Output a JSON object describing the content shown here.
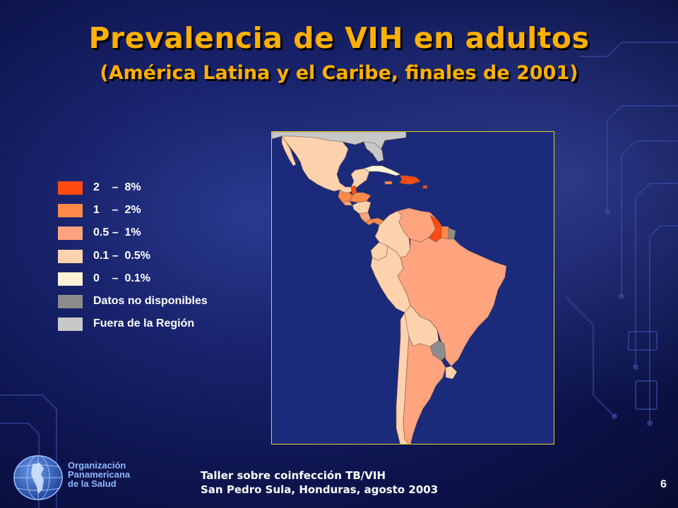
{
  "title": "Prevalencia de VIH en adultos",
  "subtitle": "(América Latina y el Caribe, finales de 2001)",
  "colors": {
    "title": "#ffb000",
    "frame": "#e8d020",
    "ocean": "#1b2a7a",
    "outside_region": "#c8c8c8",
    "no_data": "#8c8c8c"
  },
  "legend": [
    {
      "label": "2    –  8%",
      "color": "#ff4a10"
    },
    {
      "label": "1    –  2%",
      "color": "#ff8a4a"
    },
    {
      "label": "0.5 –  1%",
      "color": "#ffa47e"
    },
    {
      "label": "0.1 –  0.5%",
      "color": "#ffd2ae"
    },
    {
      "label": "0    –  0.1%",
      "color": "#fff3d8"
    },
    {
      "label": "Datos no disponibles",
      "color": "#8c8c8c"
    },
    {
      "label": "Fuera de la Región",
      "color": "#c8c8c8"
    }
  ],
  "map": {
    "region": "América Latina y el Caribe",
    "areas": [
      {
        "name": "United States",
        "category": "Fuera de la Región"
      },
      {
        "name": "Mexico",
        "category": "0.1 – 0.5%"
      },
      {
        "name": "Guatemala",
        "category": "1 – 2%"
      },
      {
        "name": "Belize",
        "category": "2 – 8%"
      },
      {
        "name": "Honduras",
        "category": "1 – 2%"
      },
      {
        "name": "El Salvador",
        "category": "0.5 – 1%"
      },
      {
        "name": "Nicaragua",
        "category": "0.1 – 0.5%"
      },
      {
        "name": "Costa Rica",
        "category": "0.5 – 1%"
      },
      {
        "name": "Panama",
        "category": "1 – 2%"
      },
      {
        "name": "Cuba",
        "category": "0 – 0.1%"
      },
      {
        "name": "Jamaica",
        "category": "1 – 2%"
      },
      {
        "name": "Haiti",
        "category": "2 – 8%"
      },
      {
        "name": "Dominican Republic",
        "category": "2 – 8%"
      },
      {
        "name": "Colombia",
        "category": "0.1 – 0.5%"
      },
      {
        "name": "Venezuela",
        "category": "0.5 – 1%"
      },
      {
        "name": "Guyana",
        "category": "2 – 8%"
      },
      {
        "name": "Suriname",
        "category": "1 – 2%"
      },
      {
        "name": "French Guiana",
        "category": "Datos no disponibles"
      },
      {
        "name": "Ecuador",
        "category": "0.1 – 0.5%"
      },
      {
        "name": "Peru",
        "category": "0.1 – 0.5%"
      },
      {
        "name": "Brazil",
        "category": "0.5 – 1%"
      },
      {
        "name": "Bolivia",
        "category": "0.1 – 0.5%"
      },
      {
        "name": "Paraguay",
        "category": "Datos no disponibles"
      },
      {
        "name": "Chile",
        "category": "0.1 – 0.5%"
      },
      {
        "name": "Argentina",
        "category": "0.5 – 1%"
      },
      {
        "name": "Uruguay",
        "category": "0.1 – 0.5%"
      }
    ]
  },
  "organization": {
    "line1": "Organización",
    "line2": "Panamericana",
    "line3": "de la Salud"
  },
  "footer": {
    "line1": "Taller sobre coinfección TB/VIH",
    "line2": "San Pedro Sula, Honduras, agosto 2003"
  },
  "page_number": "6"
}
